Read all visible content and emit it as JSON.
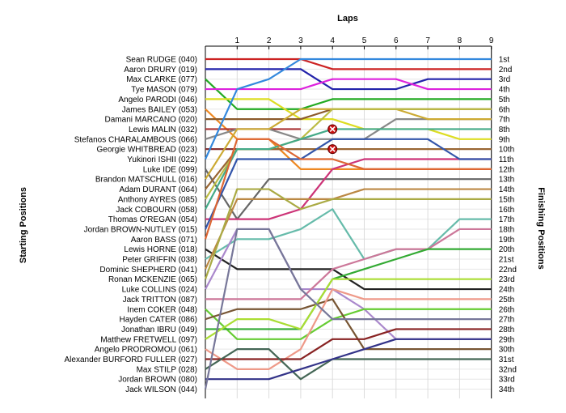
{
  "chart_data": {
    "type": "line",
    "title": "",
    "top_axis_title": "Laps",
    "left_axis_title": "Starting Positions",
    "right_axis_title": "Finishing Positions",
    "laps": [
      "1",
      "2",
      "3",
      "4",
      "5",
      "6",
      "7",
      "8",
      "9"
    ],
    "grid": true,
    "drivers": [
      {
        "name": "Sean RUDGE (040)",
        "color": "#cc2222",
        "positions": [
          1,
          1,
          1,
          1,
          2,
          2,
          2,
          2,
          2,
          2
        ]
      },
      {
        "name": "Aaron DRURY (019)",
        "color": "#2222aa",
        "positions": [
          2,
          2,
          2,
          2,
          4,
          4,
          4,
          3,
          3,
          3
        ]
      },
      {
        "name": "Max CLARKE (077)",
        "color": "#22aa22",
        "positions": [
          3,
          6,
          6,
          6,
          5,
          5,
          5,
          5,
          5,
          5
        ]
      },
      {
        "name": "Tye MASON (079)",
        "color": "#dd22dd",
        "positions": [
          4,
          4,
          4,
          4,
          3,
          3,
          3,
          4,
          4,
          4
        ]
      },
      {
        "name": "Angelo PARODI (046)",
        "color": "#dddd22",
        "positions": [
          5,
          5,
          5,
          7,
          7,
          8,
          8,
          8,
          9,
          9
        ]
      },
      {
        "name": "James BAILEY (053)",
        "color": "#ee8822",
        "positions": [
          6,
          9,
          9,
          12,
          12,
          12,
          12,
          12,
          12,
          12
        ]
      },
      {
        "name": "Damani MARCANO (020)",
        "color": "#8b5a2b",
        "positions": [
          7,
          7,
          7,
          7,
          6,
          6,
          6,
          6,
          6,
          6
        ]
      },
      {
        "name": "Lewis MALIN (032)",
        "color": "#aa3333",
        "positions": [
          8,
          8,
          8,
          8
        ]
      },
      {
        "name": "Stefanos CHARALAMBOUS (066)",
        "color": "#888888",
        "positions": [
          9,
          8,
          8,
          9,
          9,
          9,
          7,
          7,
          7,
          7
        ]
      },
      {
        "name": "Georgie WHITBREAD (023)",
        "color": "#883333",
        "positions": [
          10,
          10,
          10,
          10
        ]
      },
      {
        "name": "Yukinori ISHII (022)",
        "color": "#3388dd",
        "positions": [
          11,
          4,
          3,
          1,
          1,
          1,
          1,
          1,
          1,
          1
        ]
      },
      {
        "name": "Luke IDE (099)",
        "color": "#666666",
        "positions": [
          12,
          17,
          13,
          13,
          13,
          13,
          13,
          13,
          13,
          13
        ]
      },
      {
        "name": "Brandon MATSCHULL (016)",
        "color": "#ccaa33",
        "positions": [
          13,
          8,
          8,
          6,
          6,
          6,
          6,
          7,
          7,
          7
        ]
      },
      {
        "name": "Adam DURANT (064)",
        "color": "#996633",
        "positions": [
          14,
          10,
          10,
          10,
          10,
          10,
          10,
          10,
          10,
          10
        ]
      },
      {
        "name": "Anthony AYRES (085)",
        "color": "#bbbb44",
        "positions": [
          15,
          10,
          10,
          9,
          6,
          6,
          6,
          6,
          6,
          6
        ]
      },
      {
        "name": "Jack COBOURN (058)",
        "color": "#44aa88",
        "positions": [
          16,
          10,
          10,
          9,
          8,
          8,
          8,
          8,
          8,
          8
        ]
      },
      {
        "name": "Thomas O'REGAN (054)",
        "color": "#cc3377",
        "positions": [
          17,
          17,
          17,
          16,
          12,
          11,
          11,
          11,
          11,
          11
        ]
      },
      {
        "name": "Jordan BROWN-NUTLEY (015)",
        "color": "#3355aa",
        "positions": [
          18,
          11,
          11,
          11,
          9,
          9,
          9,
          9,
          11,
          11
        ]
      },
      {
        "name": "Aaron BASS (071)",
        "color": "#dd6633",
        "positions": [
          19,
          9,
          9,
          11,
          11,
          12,
          12,
          12,
          12,
          12
        ]
      },
      {
        "name": "Lewis HORNE (018)",
        "color": "#222222",
        "positions": [
          20,
          22,
          22,
          22,
          22,
          24,
          24,
          24,
          24,
          24
        ]
      },
      {
        "name": "Peter GRIFFIN (038)",
        "color": "#66bbaa",
        "positions": [
          21,
          19,
          19,
          18,
          16,
          21,
          20,
          20,
          17,
          17
        ]
      },
      {
        "name": "Dominic SHEPHERD (041)",
        "color": "#bb8844",
        "positions": [
          22,
          15,
          15,
          15,
          15,
          14,
          14,
          14,
          14,
          14
        ]
      },
      {
        "name": "Ronan MCKENZIE (065)",
        "color": "#aaaa44",
        "positions": [
          23,
          14,
          14,
          16,
          15,
          15,
          15,
          15,
          15,
          15
        ]
      },
      {
        "name": "Luke COLLINS (024)",
        "color": "#aa88cc",
        "positions": [
          24,
          18,
          18,
          24,
          24,
          26,
          29,
          29,
          29,
          29
        ]
      },
      {
        "name": "Jack TRITTON (087)",
        "color": "#cc7799",
        "positions": [
          25,
          25,
          25,
          25,
          22,
          21,
          20,
          20,
          18,
          18
        ]
      },
      {
        "name": "Inem COKER (048)",
        "color": "#66cc33",
        "positions": [
          26,
          29,
          29,
          29,
          27,
          26,
          26,
          26,
          26,
          26
        ]
      },
      {
        "name": "Hayden CATER (086)",
        "color": "#775533",
        "positions": [
          27,
          26,
          26,
          26,
          25,
          30,
          30,
          30,
          30,
          30
        ]
      },
      {
        "name": "Jonathan IBRU (049)",
        "color": "#33aa33",
        "positions": [
          28,
          28,
          28,
          28,
          23,
          22,
          21,
          20,
          20,
          20
        ]
      },
      {
        "name": "Matthew FRETWELL (097)",
        "color": "#aadd33",
        "positions": [
          29,
          27,
          27,
          28,
          23,
          23,
          23,
          23,
          23,
          23
        ]
      },
      {
        "name": "Angelo PRODROMOU (061)",
        "color": "#ee9988",
        "positions": [
          30,
          32,
          32,
          30,
          24,
          25,
          25,
          25,
          25,
          25
        ]
      },
      {
        "name": "Alexander BURFORD FULLER (027)",
        "color": "#882222",
        "positions": [
          31,
          31,
          31,
          31,
          29,
          29,
          28,
          28,
          28,
          28
        ]
      },
      {
        "name": "Max STILP (028)",
        "color": "#446655",
        "positions": [
          32,
          30,
          30,
          33,
          31,
          31,
          31,
          31,
          31,
          31
        ]
      },
      {
        "name": "Jordan BROWN (080)",
        "color": "#333388",
        "positions": [
          33,
          33,
          33,
          32,
          31,
          30,
          29,
          29,
          29,
          29
        ]
      },
      {
        "name": "Jack WILSON (044)",
        "color": "#777799",
        "positions": [
          34,
          18,
          18,
          24,
          27,
          27,
          27,
          27,
          27,
          27
        ]
      }
    ],
    "retirements": [
      {
        "driver": "Lewis MALIN (032)",
        "lap": "4",
        "position": 8
      },
      {
        "driver": "Georgie WHITBREAD (023)",
        "lap": "4",
        "position": 10
      }
    ],
    "finishing_positions": [
      "1st",
      "2nd",
      "3rd",
      "4th",
      "5th",
      "6th",
      "7th",
      "8th",
      "9th",
      "10th",
      "11th",
      "12th",
      "13th",
      "14th",
      "15th",
      "16th",
      "17th",
      "18th",
      "19th",
      "20th",
      "21st",
      "22nd",
      "23rd",
      "24th",
      "25th",
      "26th",
      "27th",
      "28th",
      "29th",
      "30th",
      "31st",
      "32nd",
      "33rd",
      "34th"
    ]
  }
}
